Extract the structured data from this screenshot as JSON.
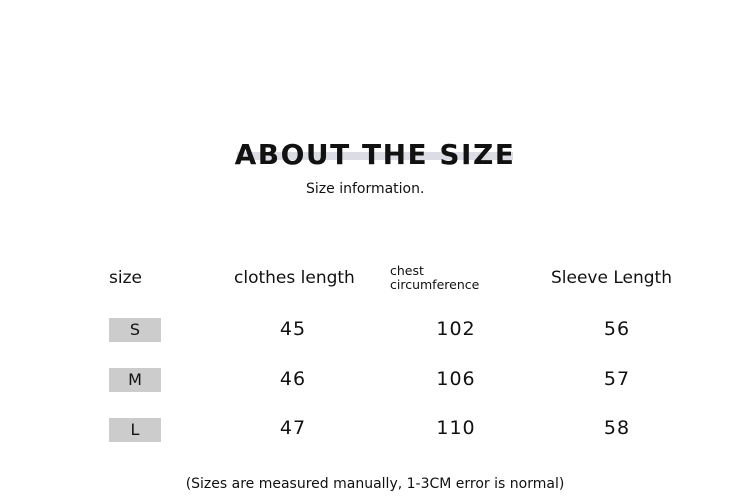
{
  "title": "ABOUT THE SIZE",
  "subtitle": "Size information.",
  "table": {
    "headers": [
      "size",
      "clothes length",
      "chest circumference",
      "Sleeve Length"
    ],
    "rows": [
      {
        "size": "S",
        "clothes_length": "45",
        "chest": "102",
        "sleeve": "56"
      },
      {
        "size": "M",
        "clothes_length": "46",
        "chest": "106",
        "sleeve": "57"
      },
      {
        "size": "L",
        "clothes_length": "47",
        "chest": "110",
        "sleeve": "58"
      }
    ]
  },
  "note": "(Sizes are measured manually, 1-3CM error is normal)",
  "colors": {
    "title_bar": "#dcdce5",
    "size_cell": "#cccccc"
  }
}
